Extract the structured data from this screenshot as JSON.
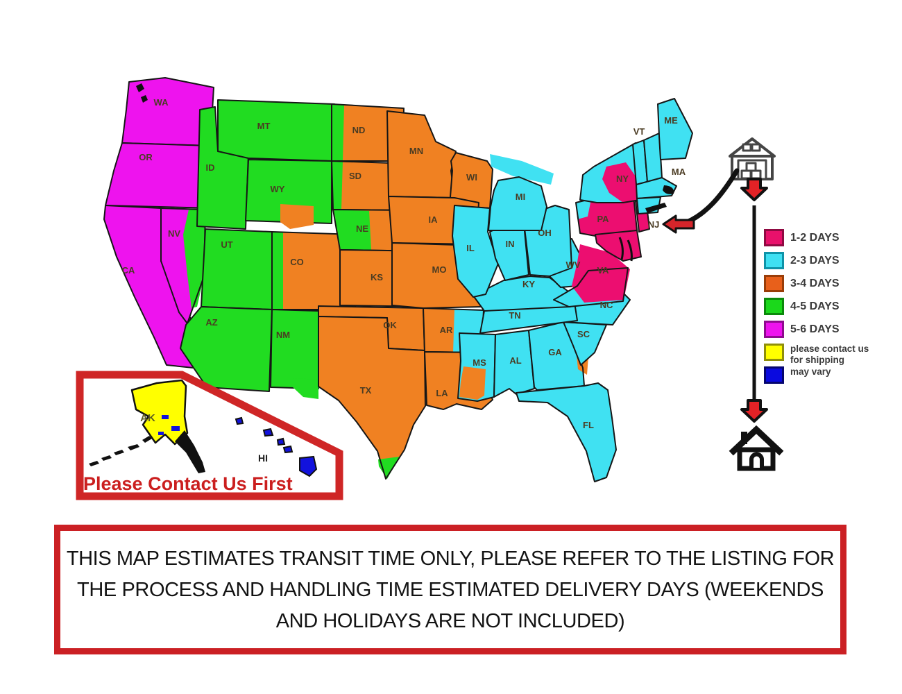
{
  "zones": {
    "z12": "#EC0E70",
    "z23": "#40E1F2",
    "z34": "#F08122",
    "z45": "#21DC21",
    "z56": "#EE13EE",
    "zcontact": "#FFFF00",
    "zvary": "#1212DD"
  },
  "legend": {
    "items": [
      {
        "zone": "z12",
        "label": "1-2 DAYS",
        "color": "#E8116B",
        "border": "#8F0A42"
      },
      {
        "zone": "z23",
        "label": "2-3 DAYS",
        "color": "#3FE0F2",
        "border": "#0E93A8"
      },
      {
        "zone": "z34",
        "label": "3-4 DAYS",
        "color": "#E8601B",
        "border": "#9A3D08"
      },
      {
        "zone": "z45",
        "label": "4-5 DAYS",
        "color": "#1BD81B",
        "border": "#0B8A0B"
      },
      {
        "zone": "z56",
        "label": "5-6 DAYS",
        "color": "#EE13EE",
        "border": "#8F0A8F"
      },
      {
        "zone": "zcontact",
        "label": "please contact us for shipping",
        "color": "#FFFF00",
        "border": "#8F8F0A"
      },
      {
        "zone": "zvary",
        "label": "may vary",
        "color": "#0A0ADF",
        "border": "#06066E"
      }
    ]
  },
  "states": [
    {
      "id": "WA",
      "label": "WA",
      "zone": "z56"
    },
    {
      "id": "OR",
      "label": "OR",
      "zone": "z56"
    },
    {
      "id": "CA",
      "label": "CA",
      "zone": "z56"
    },
    {
      "id": "NV",
      "label": "NV",
      "zone": "z56"
    },
    {
      "id": "ID",
      "label": "ID",
      "zone": "z45"
    },
    {
      "id": "MT",
      "label": "MT",
      "zone": "z45"
    },
    {
      "id": "WY",
      "label": "WY",
      "zone": "z45"
    },
    {
      "id": "UT",
      "label": "UT",
      "zone": "z45"
    },
    {
      "id": "AZ",
      "label": "AZ",
      "zone": "z45"
    },
    {
      "id": "NM",
      "label": "NM",
      "zone": "z45"
    },
    {
      "id": "CO",
      "label": "CO",
      "zone": "z34"
    },
    {
      "id": "ND",
      "label": "ND",
      "zone": "z34"
    },
    {
      "id": "SD",
      "label": "SD",
      "zone": "z34"
    },
    {
      "id": "NE",
      "label": "NE",
      "zone": "z34"
    },
    {
      "id": "KS",
      "label": "KS",
      "zone": "z34"
    },
    {
      "id": "OK",
      "label": "OK",
      "zone": "z34"
    },
    {
      "id": "TX",
      "label": "TX",
      "zone": "z34"
    },
    {
      "id": "MN",
      "label": "MN",
      "zone": "z34"
    },
    {
      "id": "WI",
      "label": "WI",
      "zone": "z34"
    },
    {
      "id": "IA",
      "label": "IA",
      "zone": "z34"
    },
    {
      "id": "MO",
      "label": "MO",
      "zone": "z34"
    },
    {
      "id": "AR",
      "label": "AR",
      "zone": "z34"
    },
    {
      "id": "LA",
      "label": "LA",
      "zone": "z34"
    },
    {
      "id": "MS",
      "label": "MS",
      "zone": "z23"
    },
    {
      "id": "AL",
      "label": "AL",
      "zone": "z23"
    },
    {
      "id": "GA",
      "label": "GA",
      "zone": "z23"
    },
    {
      "id": "FL",
      "label": "FL",
      "zone": "z23"
    },
    {
      "id": "SC",
      "label": "SC",
      "zone": "z23"
    },
    {
      "id": "NC",
      "label": "NC",
      "zone": "z23"
    },
    {
      "id": "TN",
      "label": "TN",
      "zone": "z23"
    },
    {
      "id": "KY",
      "label": "KY",
      "zone": "z23"
    },
    {
      "id": "WV",
      "label": "WV",
      "zone": "z23"
    },
    {
      "id": "VA",
      "label": "VA",
      "zone": "z23"
    },
    {
      "id": "IL",
      "label": "IL",
      "zone": "z23"
    },
    {
      "id": "IN",
      "label": "IN",
      "zone": "z23"
    },
    {
      "id": "OH",
      "label": "OH",
      "zone": "z23"
    },
    {
      "id": "MI",
      "label": "MI",
      "zone": "z23"
    },
    {
      "id": "PA",
      "label": "PA",
      "zone": "z12"
    },
    {
      "id": "NY",
      "label": "NY",
      "zone": "z23"
    },
    {
      "id": "NJ",
      "label": "NJ",
      "zone": "z12"
    },
    {
      "id": "MD",
      "label": "",
      "zone": "z12"
    },
    {
      "id": "VT",
      "label": "VT",
      "zone": "z23"
    },
    {
      "id": "NH",
      "label": "",
      "zone": "z23"
    },
    {
      "id": "ME",
      "label": "ME",
      "zone": "z23"
    },
    {
      "id": "MA",
      "label": "MA",
      "zone": "z23"
    },
    {
      "id": "CT",
      "label": "",
      "zone": "z23"
    }
  ],
  "inset": {
    "caption": "Please Contact Us First",
    "states": [
      {
        "id": "AK",
        "label": "AK",
        "zone": "zcontact"
      },
      {
        "id": "HI",
        "label": "HI",
        "zone": "zvary"
      }
    ]
  },
  "disclaimer": {
    "lines": [
      "THIS MAP ESTIMATES TRANSIT TIME ONLY, PLEASE REFER TO THE LISTING FOR",
      "THE PROCESS AND HANDLING TIME ESTIMATED DELIVERY DAYS (WEEKENDS",
      "AND HOLIDAYS ARE NOT INCLUDED)"
    ]
  }
}
